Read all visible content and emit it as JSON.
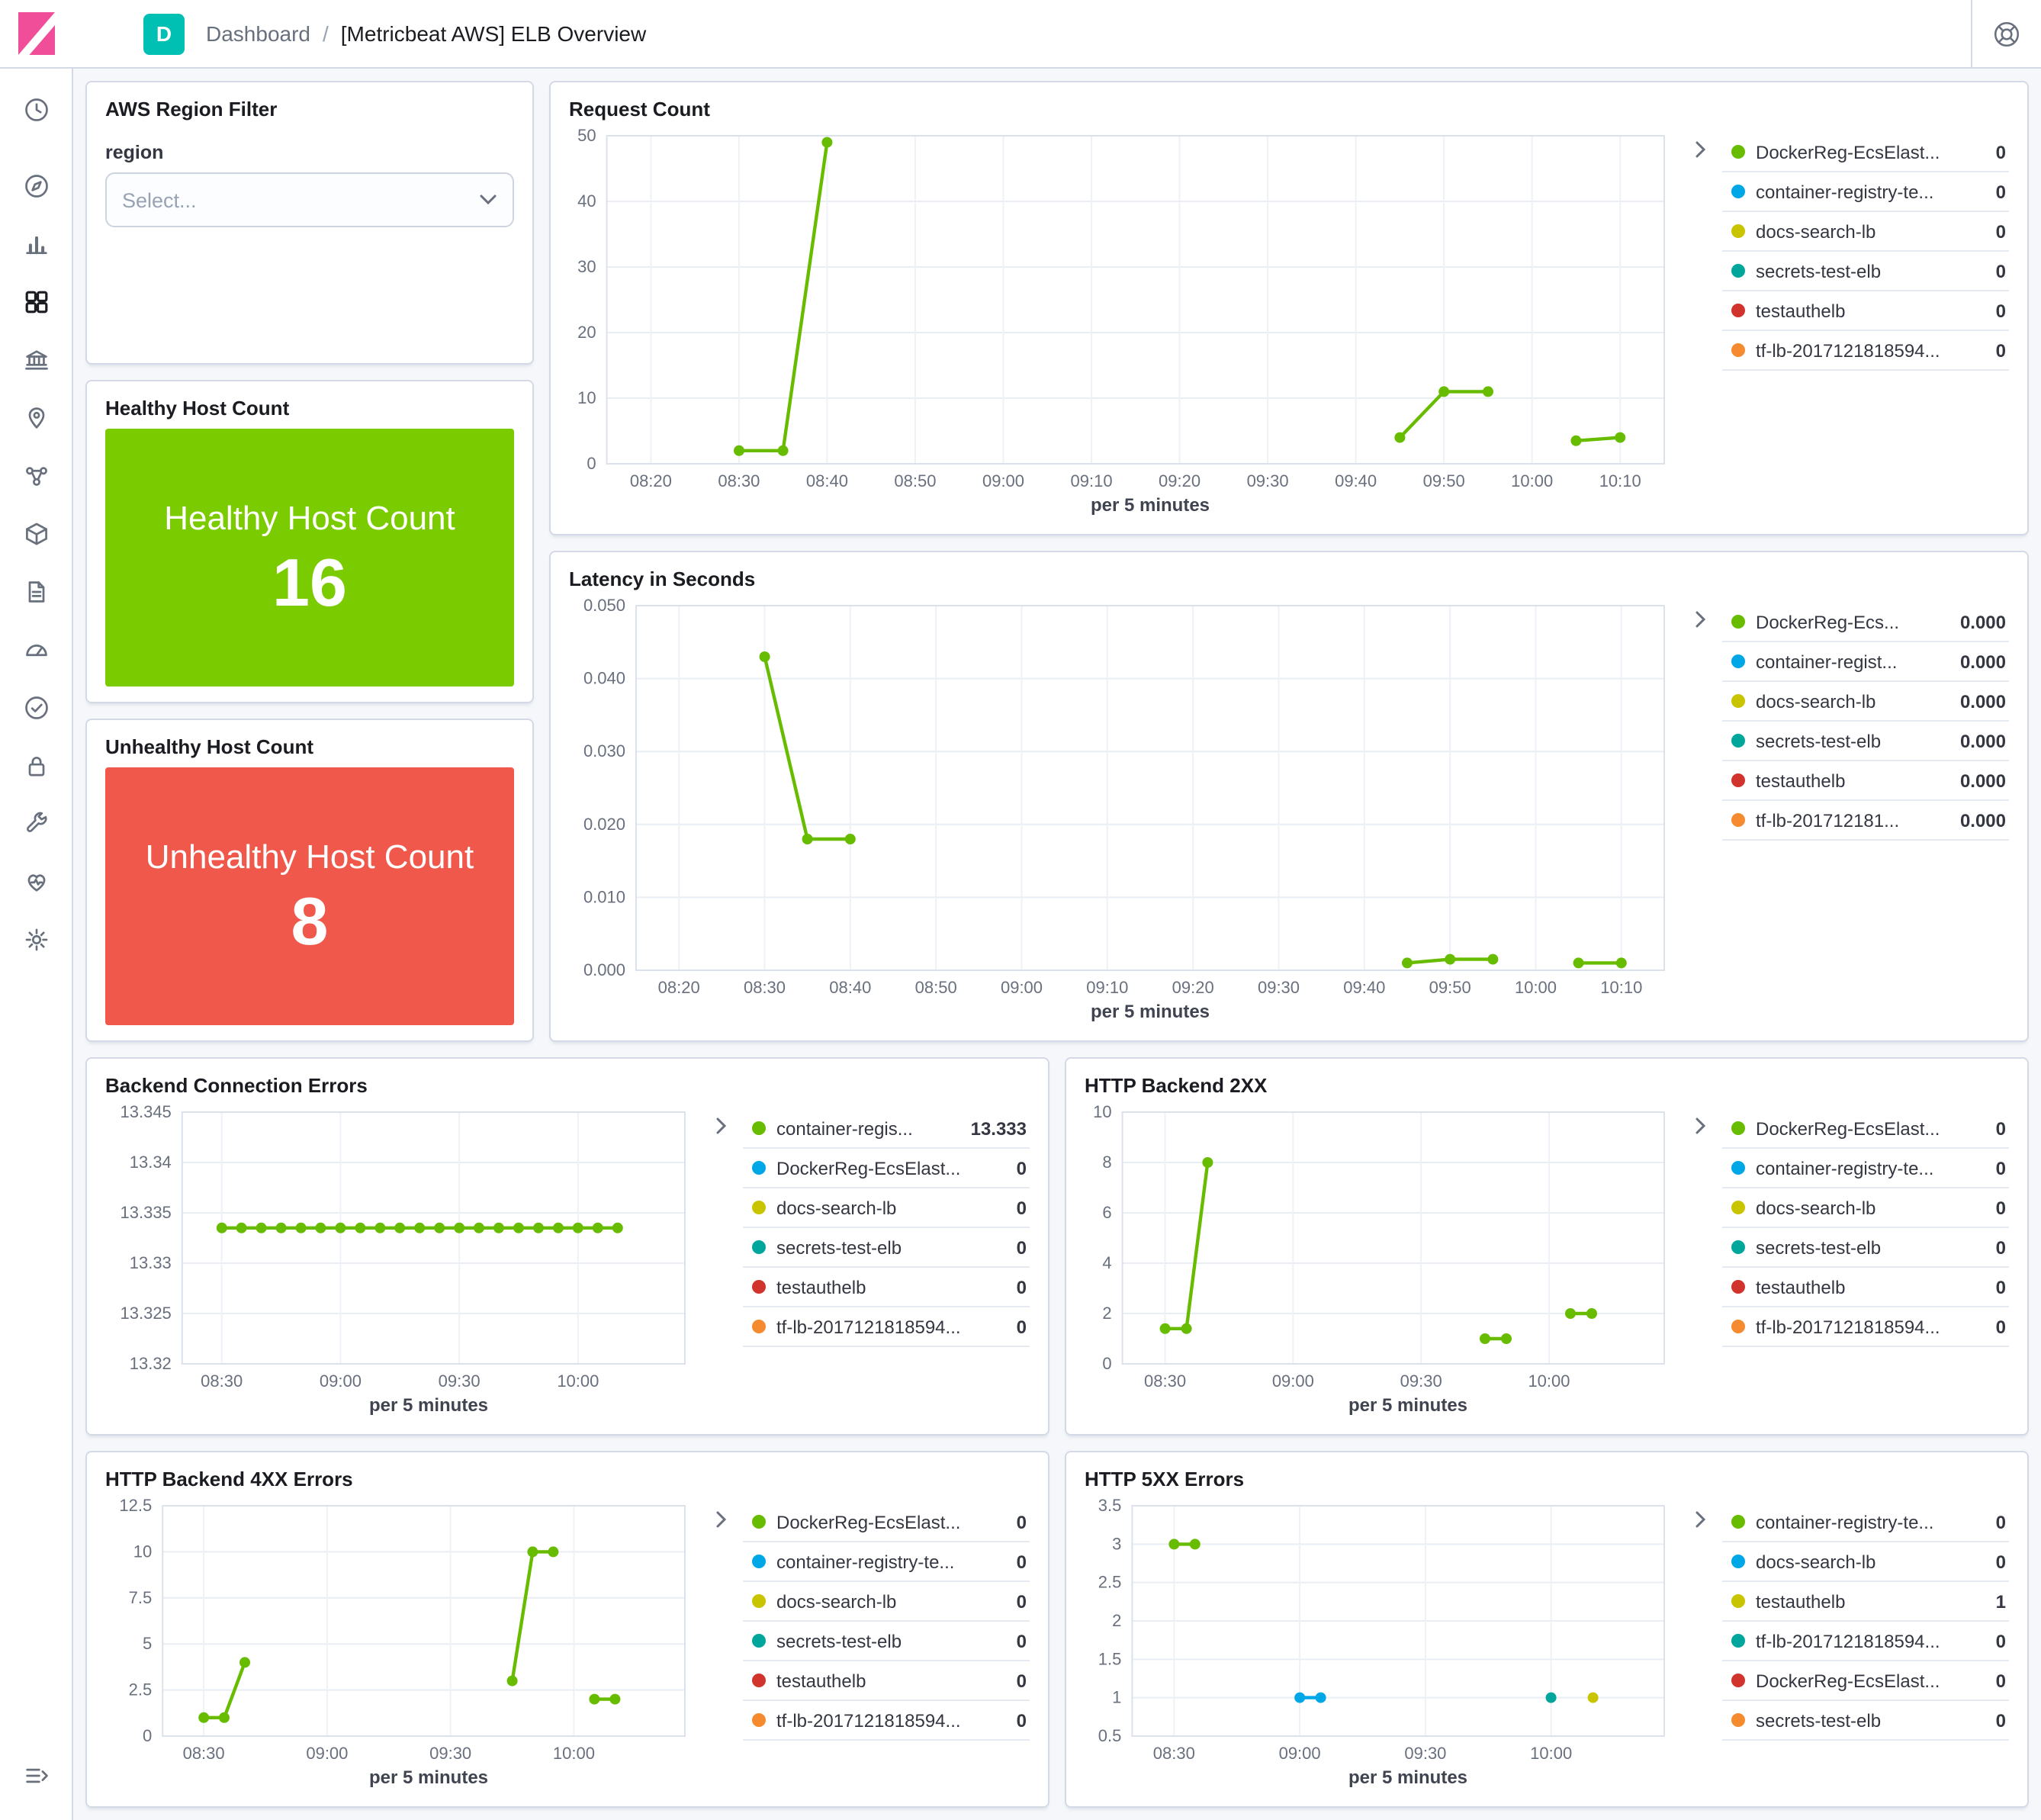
{
  "header": {
    "app_badge": "D",
    "breadcrumb": {
      "root": "Dashboard",
      "separator": "/",
      "current": "[Metricbeat AWS] ELB Overview"
    }
  },
  "sidebar": {
    "icons": [
      "recently-viewed",
      "discover",
      "visualize",
      "dashboard",
      "canvas",
      "maps",
      "machine-learning",
      "infrastructure",
      "logs",
      "apm",
      "uptime",
      "security",
      "dev-tools",
      "stack-monitoring",
      "management"
    ],
    "active": "dashboard"
  },
  "colors": {
    "logo_pink": "#F04E98",
    "badge_teal": "#00BFB3",
    "healthy_green": "#7ACC00",
    "unhealthy_red": "#F0584B",
    "series_green": "#68BC00",
    "series_blue": "#00A7E6",
    "series_yellow": "#C9C400",
    "series_teal": "#00A69B",
    "series_red": "#D0342C",
    "series_orange": "#F68A2E"
  },
  "filter_panel": {
    "title": "AWS Region Filter",
    "field_label": "region",
    "select_placeholder": "Select..."
  },
  "metric_panels": [
    {
      "title": "Healthy Host Count",
      "label": "Healthy Host Count",
      "value": "16",
      "background": "#7ACC00"
    },
    {
      "title": "Unhealthy Host Count",
      "label": "Unhealthy Host Count",
      "value": "8",
      "background": "#F0584B"
    }
  ],
  "chart_data": [
    {
      "id": "request_count",
      "type": "line",
      "title": "Request Count",
      "xlabel": "per 5 minutes",
      "x_domain": [
        "08:15",
        "10:15"
      ],
      "x_ticks": [
        "08:20",
        "08:30",
        "08:40",
        "08:50",
        "09:00",
        "09:10",
        "09:20",
        "09:30",
        "09:40",
        "09:50",
        "10:00",
        "10:10"
      ],
      "y_domain": [
        0,
        50
      ],
      "y_ticks": [
        {
          "v": 0,
          "t": "0"
        },
        {
          "v": 10,
          "t": "10"
        },
        {
          "v": 20,
          "t": "20"
        },
        {
          "v": 30,
          "t": "30"
        },
        {
          "v": 40,
          "t": "40"
        },
        {
          "v": 50,
          "t": "50"
        }
      ],
      "series": [
        {
          "name": "request-count",
          "color": "#68BC00",
          "segments": [
            [
              [
                "08:30",
                2
              ],
              [
                "08:35",
                2
              ],
              [
                "08:40",
                49
              ]
            ],
            [
              [
                "09:45",
                4
              ],
              [
                "09:50",
                11
              ],
              [
                "09:55",
                11
              ]
            ],
            [
              [
                "10:05",
                3.5
              ],
              [
                "10:10",
                4
              ]
            ]
          ]
        }
      ],
      "legend": [
        {
          "label": "DockerReg-EcsElast...",
          "value": "0",
          "color": "#68BC00"
        },
        {
          "label": "container-registry-te...",
          "value": "0",
          "color": "#00A7E6"
        },
        {
          "label": "docs-search-lb",
          "value": "0",
          "color": "#C9C400"
        },
        {
          "label": "secrets-test-elb",
          "value": "0",
          "color": "#00A69B"
        },
        {
          "label": "testauthelb",
          "value": "0",
          "color": "#D0342C"
        },
        {
          "label": "tf-lb-2017121818594...",
          "value": "0",
          "color": "#F68A2E"
        }
      ]
    },
    {
      "id": "latency",
      "type": "line",
      "title": "Latency in Seconds",
      "xlabel": "per 5 minutes",
      "x_domain": [
        "08:15",
        "10:15"
      ],
      "x_ticks": [
        "08:20",
        "08:30",
        "08:40",
        "08:50",
        "09:00",
        "09:10",
        "09:20",
        "09:30",
        "09:40",
        "09:50",
        "10:00",
        "10:10"
      ],
      "y_domain": [
        0,
        0.05
      ],
      "y_ticks": [
        {
          "v": 0,
          "t": "0.000"
        },
        {
          "v": 0.01,
          "t": "0.010"
        },
        {
          "v": 0.02,
          "t": "0.020"
        },
        {
          "v": 0.03,
          "t": "0.030"
        },
        {
          "v": 0.04,
          "t": "0.040"
        },
        {
          "v": 0.05,
          "t": "0.050"
        }
      ],
      "series": [
        {
          "name": "latency",
          "color": "#68BC00",
          "segments": [
            [
              [
                "08:30",
                0.043
              ],
              [
                "08:35",
                0.018
              ],
              [
                "08:40",
                0.018
              ]
            ],
            [
              [
                "09:45",
                0.001
              ],
              [
                "09:50",
                0.0015
              ],
              [
                "09:55",
                0.0015
              ]
            ],
            [
              [
                "10:05",
                0.001
              ],
              [
                "10:10",
                0.001
              ]
            ]
          ]
        }
      ],
      "legend": [
        {
          "label": "DockerReg-Ecs...",
          "value": "0.000",
          "color": "#68BC00"
        },
        {
          "label": "container-regist...",
          "value": "0.000",
          "color": "#00A7E6"
        },
        {
          "label": "docs-search-lb",
          "value": "0.000",
          "color": "#C9C400"
        },
        {
          "label": "secrets-test-elb",
          "value": "0.000",
          "color": "#00A69B"
        },
        {
          "label": "testauthelb",
          "value": "0.000",
          "color": "#D0342C"
        },
        {
          "label": "tf-lb-201712181...",
          "value": "0.000",
          "color": "#F68A2E"
        }
      ]
    },
    {
      "id": "backend_connection_errors",
      "type": "line",
      "title": "Backend Connection Errors",
      "xlabel": "per 5 minutes",
      "x_domain": [
        "08:20",
        "10:27"
      ],
      "x_ticks": [
        "08:30",
        "09:00",
        "09:30",
        "10:00"
      ],
      "y_domain": [
        13.32,
        13.345
      ],
      "y_ticks": [
        {
          "v": 13.32,
          "t": "13.32"
        },
        {
          "v": 13.325,
          "t": "13.325"
        },
        {
          "v": 13.33,
          "t": "13.33"
        },
        {
          "v": 13.335,
          "t": "13.335"
        },
        {
          "v": 13.34,
          "t": "13.34"
        },
        {
          "v": 13.345,
          "t": "13.345"
        }
      ],
      "series": [
        {
          "name": "backend-connection-errors",
          "color": "#68BC00",
          "segments": [
            [
              [
                "08:30",
                13.3335
              ],
              [
                "08:35",
                13.3335
              ],
              [
                "08:40",
                13.3335
              ],
              [
                "08:45",
                13.3335
              ],
              [
                "08:50",
                13.3335
              ],
              [
                "08:55",
                13.3335
              ],
              [
                "09:00",
                13.3335
              ],
              [
                "09:05",
                13.3335
              ],
              [
                "09:10",
                13.3335
              ],
              [
                "09:15",
                13.3335
              ],
              [
                "09:20",
                13.3335
              ],
              [
                "09:25",
                13.3335
              ],
              [
                "09:30",
                13.3335
              ],
              [
                "09:35",
                13.3335
              ],
              [
                "09:40",
                13.3335
              ],
              [
                "09:45",
                13.3335
              ],
              [
                "09:50",
                13.3335
              ],
              [
                "09:55",
                13.3335
              ],
              [
                "10:00",
                13.3335
              ],
              [
                "10:05",
                13.3335
              ],
              [
                "10:10",
                13.3335
              ]
            ]
          ]
        }
      ],
      "legend": [
        {
          "label": "container-regis...",
          "value": "13.333",
          "color": "#68BC00"
        },
        {
          "label": "DockerReg-EcsElast...",
          "value": "0",
          "color": "#00A7E6"
        },
        {
          "label": "docs-search-lb",
          "value": "0",
          "color": "#C9C400"
        },
        {
          "label": "secrets-test-elb",
          "value": "0",
          "color": "#00A69B"
        },
        {
          "label": "testauthelb",
          "value": "0",
          "color": "#D0342C"
        },
        {
          "label": "tf-lb-2017121818594...",
          "value": "0",
          "color": "#F68A2E"
        }
      ]
    },
    {
      "id": "http_backend_2xx",
      "type": "line",
      "title": "HTTP Backend 2XX",
      "xlabel": "per 5 minutes",
      "x_domain": [
        "08:20",
        "10:27"
      ],
      "x_ticks": [
        "08:30",
        "09:00",
        "09:30",
        "10:00"
      ],
      "y_domain": [
        0,
        10
      ],
      "y_ticks": [
        {
          "v": 0,
          "t": "0"
        },
        {
          "v": 2,
          "t": "2"
        },
        {
          "v": 4,
          "t": "4"
        },
        {
          "v": 6,
          "t": "6"
        },
        {
          "v": 8,
          "t": "8"
        },
        {
          "v": 10,
          "t": "10"
        }
      ],
      "series": [
        {
          "name": "http-2xx",
          "color": "#68BC00",
          "segments": [
            [
              [
                "08:30",
                1.4
              ],
              [
                "08:35",
                1.4
              ],
              [
                "08:40",
                8
              ]
            ],
            [
              [
                "09:45",
                1
              ],
              [
                "09:50",
                1
              ]
            ],
            [
              [
                "10:05",
                2
              ],
              [
                "10:10",
                2
              ]
            ]
          ]
        }
      ],
      "legend": [
        {
          "label": "DockerReg-EcsElast...",
          "value": "0",
          "color": "#68BC00"
        },
        {
          "label": "container-registry-te...",
          "value": "0",
          "color": "#00A7E6"
        },
        {
          "label": "docs-search-lb",
          "value": "0",
          "color": "#C9C400"
        },
        {
          "label": "secrets-test-elb",
          "value": "0",
          "color": "#00A69B"
        },
        {
          "label": "testauthelb",
          "value": "0",
          "color": "#D0342C"
        },
        {
          "label": "tf-lb-2017121818594...",
          "value": "0",
          "color": "#F68A2E"
        }
      ]
    },
    {
      "id": "http_backend_4xx",
      "type": "line",
      "title": "HTTP Backend 4XX Errors",
      "xlabel": "per 5 minutes",
      "x_domain": [
        "08:20",
        "10:27"
      ],
      "x_ticks": [
        "08:30",
        "09:00",
        "09:30",
        "10:00"
      ],
      "y_domain": [
        0,
        12.5
      ],
      "y_ticks": [
        {
          "v": 0,
          "t": "0"
        },
        {
          "v": 2.5,
          "t": "2.5"
        },
        {
          "v": 5,
          "t": "5"
        },
        {
          "v": 7.5,
          "t": "7.5"
        },
        {
          "v": 10,
          "t": "10"
        },
        {
          "v": 12.5,
          "t": "12.5"
        }
      ],
      "series": [
        {
          "name": "http-4xx",
          "color": "#68BC00",
          "segments": [
            [
              [
                "08:30",
                1
              ],
              [
                "08:35",
                1
              ],
              [
                "08:40",
                4
              ]
            ],
            [
              [
                "09:45",
                3
              ],
              [
                "09:50",
                10
              ],
              [
                "09:55",
                10
              ]
            ],
            [
              [
                "10:05",
                2
              ],
              [
                "10:10",
                2
              ]
            ]
          ]
        }
      ],
      "legend": [
        {
          "label": "DockerReg-EcsElast...",
          "value": "0",
          "color": "#68BC00"
        },
        {
          "label": "container-registry-te...",
          "value": "0",
          "color": "#00A7E6"
        },
        {
          "label": "docs-search-lb",
          "value": "0",
          "color": "#C9C400"
        },
        {
          "label": "secrets-test-elb",
          "value": "0",
          "color": "#00A69B"
        },
        {
          "label": "testauthelb",
          "value": "0",
          "color": "#D0342C"
        },
        {
          "label": "tf-lb-2017121818594...",
          "value": "0",
          "color": "#F68A2E"
        }
      ]
    },
    {
      "id": "http_5xx",
      "type": "line",
      "title": "HTTP 5XX Errors",
      "xlabel": "per 5 minutes",
      "x_domain": [
        "08:20",
        "10:27"
      ],
      "x_ticks": [
        "08:30",
        "09:00",
        "09:30",
        "10:00"
      ],
      "y_domain": [
        0.5,
        3.5
      ],
      "y_ticks": [
        {
          "v": 0.5,
          "t": "0.5"
        },
        {
          "v": 1,
          "t": "1"
        },
        {
          "v": 1.5,
          "t": "1.5"
        },
        {
          "v": 2,
          "t": "2"
        },
        {
          "v": 2.5,
          "t": "2.5"
        },
        {
          "v": 3,
          "t": "3"
        },
        {
          "v": 3.5,
          "t": "3.5"
        }
      ],
      "series": [
        {
          "name": "series-green",
          "color": "#68BC00",
          "segments": [
            [
              [
                "08:30",
                3
              ],
              [
                "08:35",
                3
              ]
            ]
          ]
        },
        {
          "name": "series-blue",
          "color": "#00A7E6",
          "segments": [
            [
              [
                "09:00",
                1
              ],
              [
                "09:05",
                1
              ]
            ]
          ]
        },
        {
          "name": "series-teal",
          "color": "#00A69B",
          "segments": [
            [
              [
                "10:00",
                1
              ]
            ]
          ]
        },
        {
          "name": "series-yellow",
          "color": "#C9C400",
          "segments": [
            [
              [
                "10:10",
                1
              ]
            ]
          ]
        }
      ],
      "legend": [
        {
          "label": "container-registry-te...",
          "value": "0",
          "color": "#68BC00"
        },
        {
          "label": "docs-search-lb",
          "value": "0",
          "color": "#00A7E6"
        },
        {
          "label": "testauthelb",
          "value": "1",
          "color": "#C9C400"
        },
        {
          "label": "tf-lb-2017121818594...",
          "value": "0",
          "color": "#00A69B"
        },
        {
          "label": "DockerReg-EcsElast...",
          "value": "0",
          "color": "#D0342C"
        },
        {
          "label": "secrets-test-elb",
          "value": "0",
          "color": "#F68A2E"
        }
      ]
    }
  ]
}
